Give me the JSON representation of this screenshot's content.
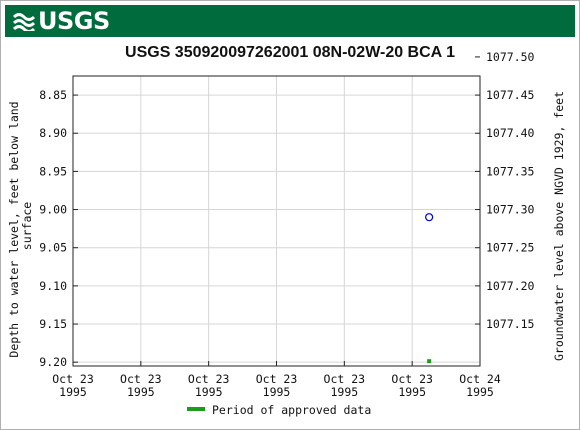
{
  "header": {
    "logo_text": "USGS",
    "logo_icon": "usgs-wave-icon",
    "brand_color": "#006b3c"
  },
  "chart_data": {
    "type": "scatter",
    "title": "USGS 350920097262001 08N-02W-20 BCA 1",
    "ylabel_left": "Depth to water level, feet below land surface",
    "ylabel_left_lines": [
      "Depth to water level, feet below land",
      "surface"
    ],
    "ylabel_right": "Groundwater level above NGVD 1929, feet",
    "x_ticks": [
      [
        "Oct 23",
        "1995"
      ],
      [
        "Oct 23",
        "1995"
      ],
      [
        "Oct 23",
        "1995"
      ],
      [
        "Oct 23",
        "1995"
      ],
      [
        "Oct 23",
        "1995"
      ],
      [
        "Oct 23",
        "1995"
      ],
      [
        "Oct 24",
        "1995"
      ]
    ],
    "y_left_ticks": [
      "8.85",
      "8.90",
      "8.95",
      "9.00",
      "9.05",
      "9.10",
      "9.15",
      "9.20"
    ],
    "y_left_values": [
      8.85,
      8.9,
      8.95,
      9.0,
      9.05,
      9.1,
      9.15,
      9.2
    ],
    "y_right_ticks": [
      "1077.50",
      "1077.45",
      "1077.40",
      "1077.35",
      "1077.30",
      "1077.25",
      "1077.20",
      "1077.15"
    ],
    "y_right_values": [
      1077.5,
      1077.45,
      1077.4,
      1077.35,
      1077.3,
      1077.25,
      1077.2,
      1077.15
    ],
    "ylim_left": [
      8.825,
      9.205
    ],
    "y_inverted": true,
    "xlim_fraction": [
      0,
      1
    ],
    "grid": true,
    "series": [
      {
        "name": "Period of approved data",
        "color": "#1a9e1a",
        "marker": "square",
        "points": [
          {
            "x_fraction": 0.875,
            "depth": 9.2
          }
        ]
      }
    ],
    "unlabeled_points": [
      {
        "x_fraction": 0.875,
        "depth": 9.01,
        "marker": "open-circle",
        "color": "#0000cc"
      }
    ],
    "legend_position": "bottom-center"
  }
}
